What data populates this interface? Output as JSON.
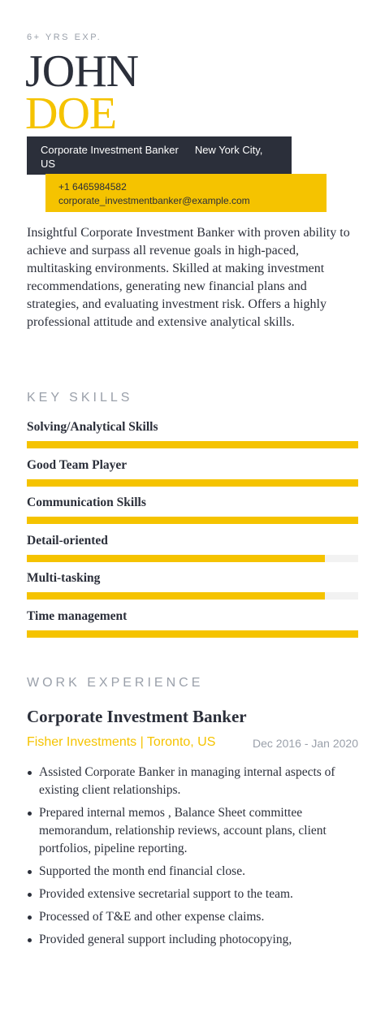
{
  "header": {
    "experience": "6+ YRS EXP.",
    "first_name": "JOHN",
    "last_name": "DOE",
    "job_title": "Corporate Investment Banker",
    "location": "New York City, US",
    "phone": "+1 6465984582",
    "email": "corporate_investmentbanker@example.com"
  },
  "summary": "Insightful Corporate Investment Banker with proven ability to achieve and surpass all revenue goals in high-paced, multitasking environments. Skilled at making investment recommendations, generating new financial plans and strategies, and evaluating investment risk. Offers a highly professional attitude and extensive analytical skills.",
  "skills": {
    "heading": "KEY SKILLS",
    "items": [
      {
        "name": "Solving/Analytical Skills",
        "level": 100
      },
      {
        "name": "Good Team Player",
        "level": 100
      },
      {
        "name": "Communication Skills",
        "level": 100
      },
      {
        "name": "Detail-oriented",
        "level": 90
      },
      {
        "name": "Multi-tasking",
        "level": 90
      },
      {
        "name": "Time management",
        "level": 100
      }
    ]
  },
  "work": {
    "heading": "WORK EXPERIENCE",
    "jobs": [
      {
        "title": "Corporate Investment Banker",
        "company": "Fisher Investments | Toronto, US",
        "dates": "Dec 2016 - Jan 2020",
        "bullets": [
          "Assisted Corporate Banker in managing internal aspects of existing client relationships.",
          "Prepared internal memos , Balance Sheet committee memorandum, relationship reviews, account plans, client portfolios, pipeline reporting.",
          "Supported the month end financial close.",
          "Provided extensive secretarial support to the team.",
          "Processed of T&E and other expense claims.",
          "Provided general support including photocopying,"
        ]
      }
    ]
  }
}
